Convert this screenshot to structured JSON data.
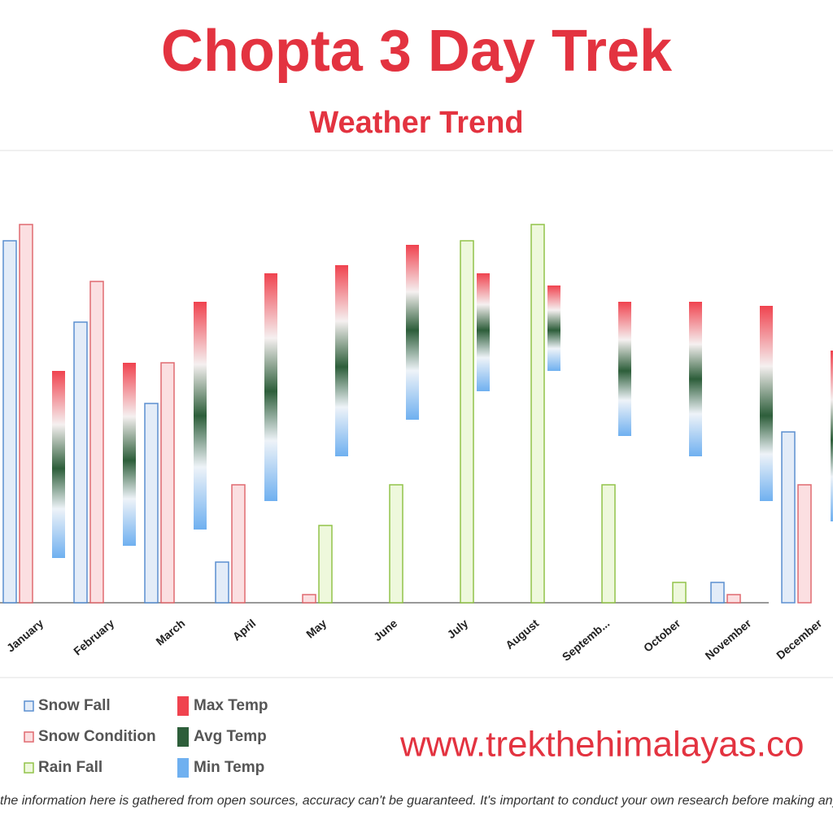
{
  "chart_data": {
    "type": "bar",
    "title": "Chopta 3 Day Trek",
    "subtitle": "Weather Trend",
    "categories": [
      "January",
      "February",
      "March",
      "April",
      "May",
      "June",
      "July",
      "August",
      "Septemb...",
      "October",
      "November",
      "December"
    ],
    "series": [
      {
        "name": "Snow Fall",
        "color": "#5b8fd0",
        "values": [
          89,
          69,
          49,
          10,
          0,
          0,
          0,
          0,
          0,
          0,
          5,
          42
        ]
      },
      {
        "name": "Snow Condition",
        "color": "#e06a70",
        "values": [
          93,
          79,
          59,
          29,
          2,
          0,
          0,
          0,
          0,
          0,
          2,
          29
        ]
      },
      {
        "name": "Rain Fall",
        "color": "#92c34a",
        "values": [
          0,
          0,
          0,
          0,
          19,
          29,
          89,
          93,
          29,
          5,
          0,
          0
        ]
      }
    ],
    "temperature_series": [
      {
        "name": "Max Temp",
        "color": "#f0434f",
        "values": [
          57,
          59,
          74,
          81,
          83,
          88,
          81,
          78,
          74,
          74,
          73,
          62
        ]
      },
      {
        "name": "Avg Temp",
        "color": "#2d5e3a",
        "values": [
          33,
          35,
          46,
          52,
          58,
          67,
          67,
          67,
          57,
          55,
          46,
          40
        ]
      },
      {
        "name": "Min Temp",
        "color": "#6fb0f0",
        "values": [
          11,
          14,
          18,
          25,
          36,
          45,
          52,
          57,
          41,
          36,
          25,
          20
        ]
      }
    ],
    "ylim": [
      0,
      120
    ]
  },
  "footer": {
    "website": "www.trekthehimalayas.co",
    "disclaimer": "the information here is gathered from open sources, accuracy can't be guaranteed. It's important to conduct your own research before making any dec"
  }
}
